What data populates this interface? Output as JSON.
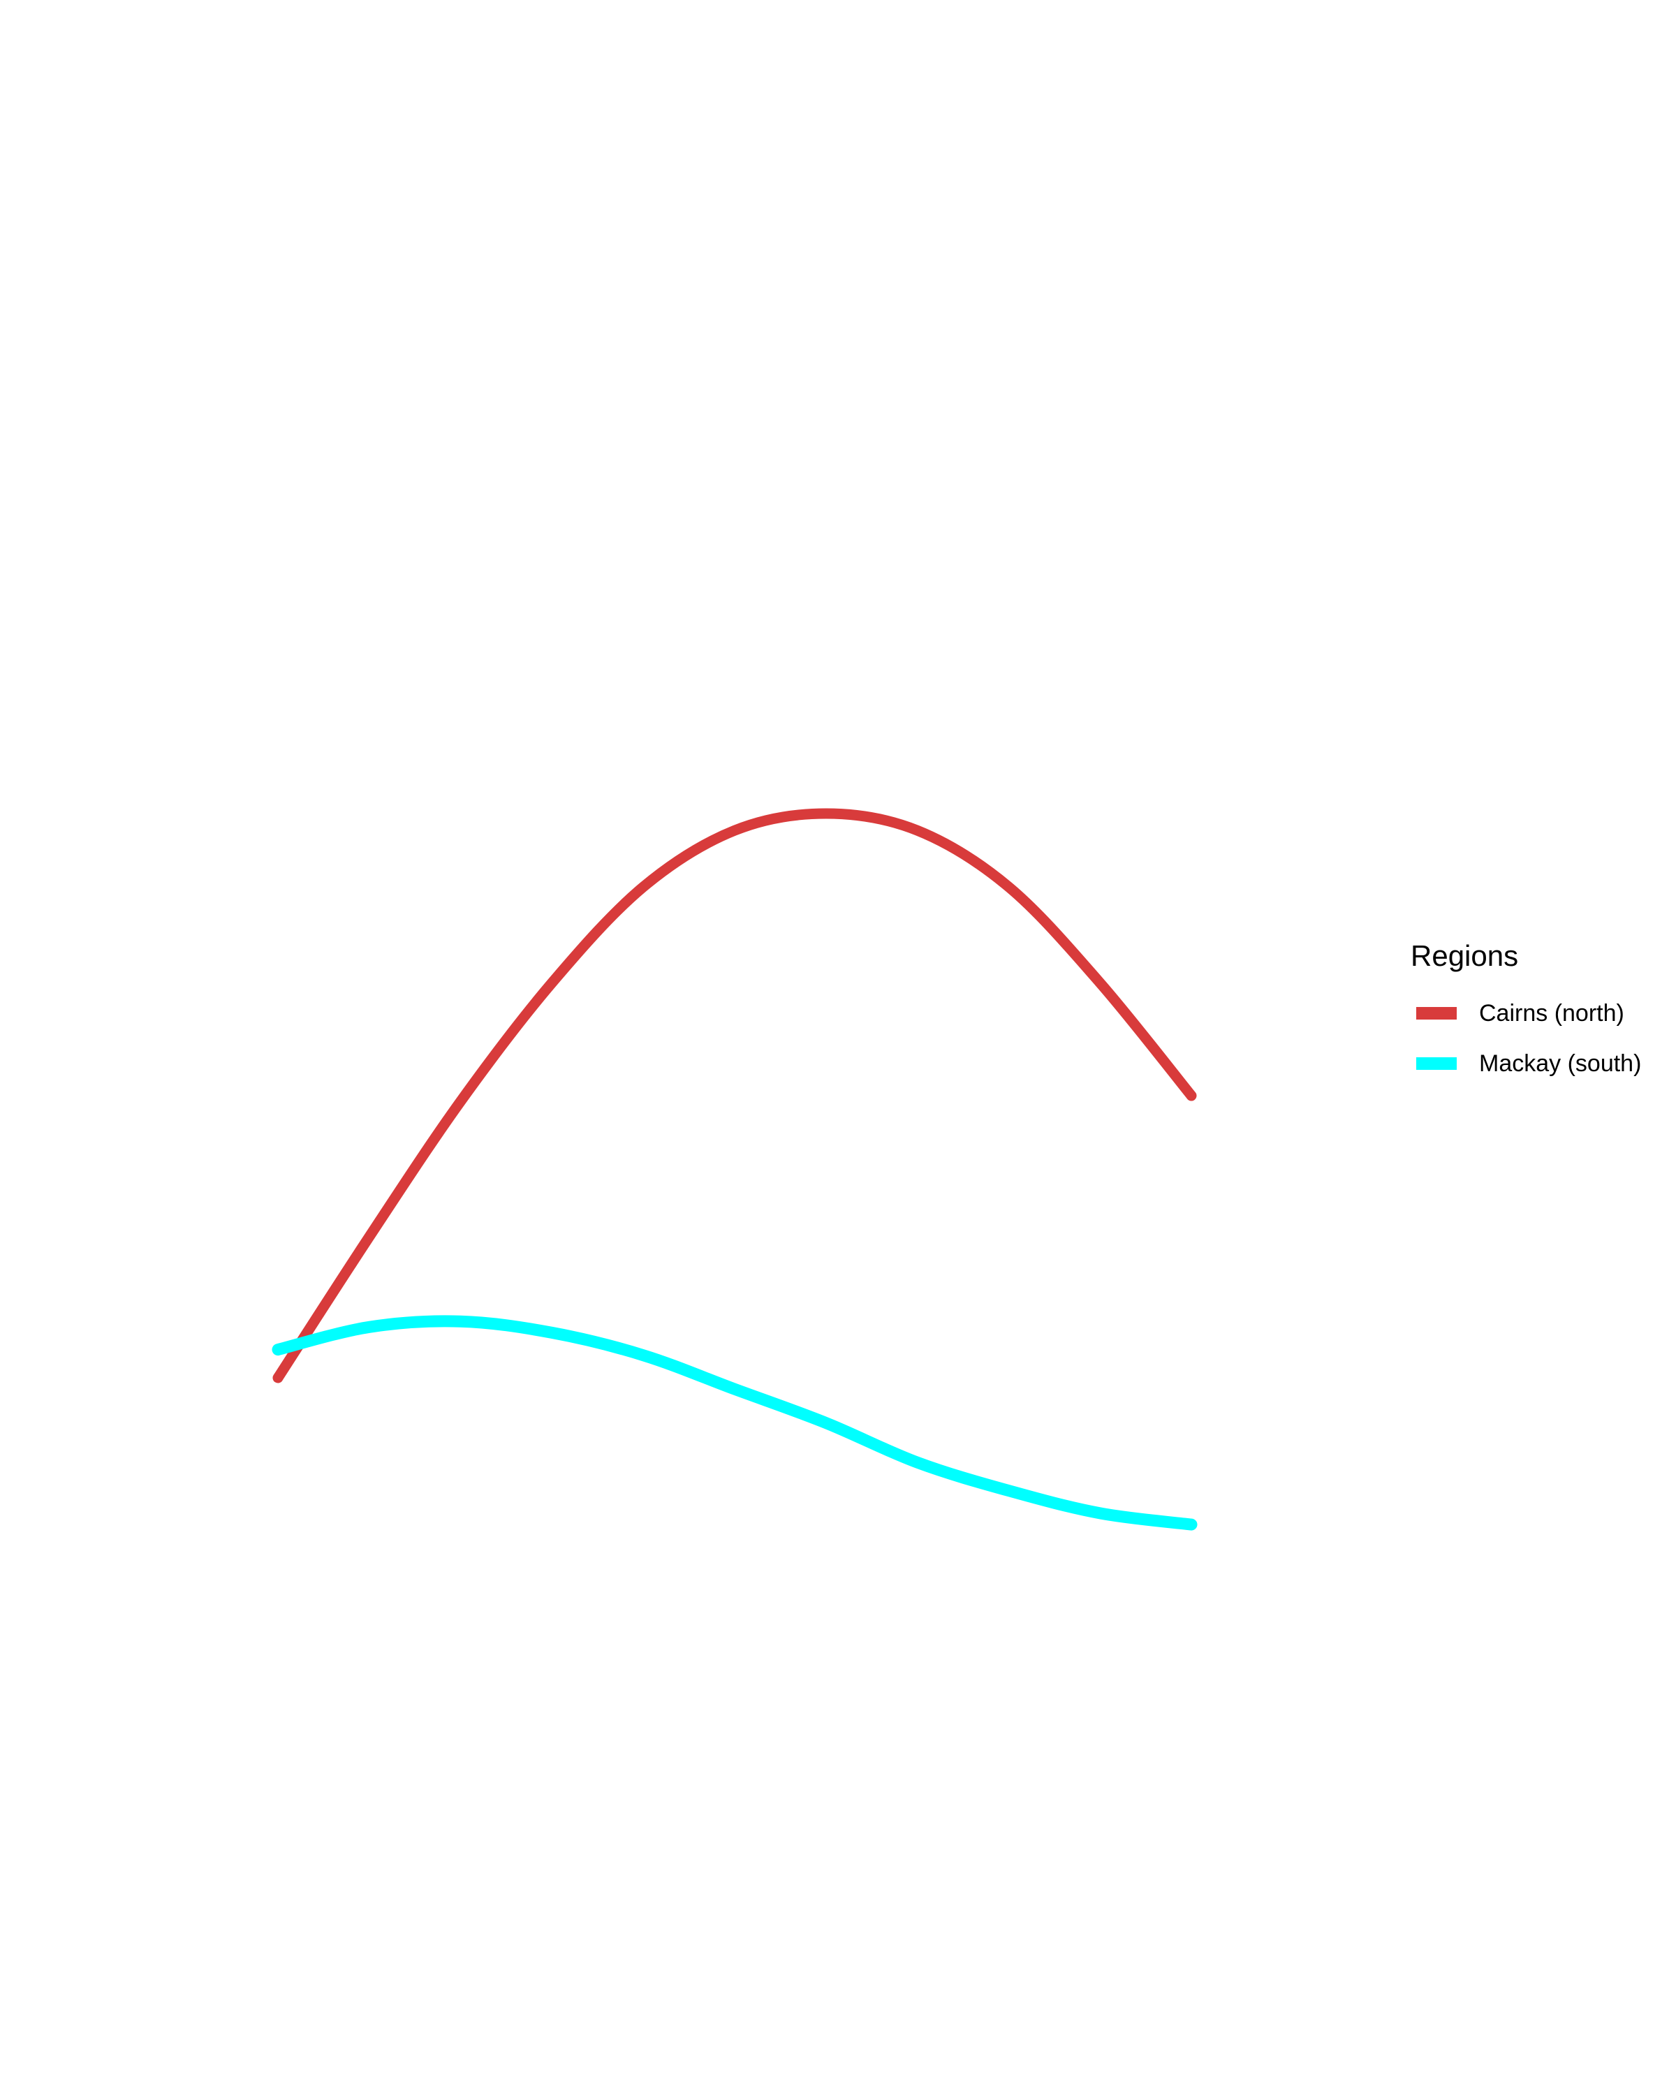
{
  "chart_data": {
    "type": "line",
    "title": "",
    "xlabel": "",
    "ylabel": "",
    "axes_visible": false,
    "grid": false,
    "legend_position": "right",
    "legend_title": "Regions",
    "series": [
      {
        "name": "Cairns (north)",
        "color": "#d83b3b",
        "points": [
          [
            0.0,
            0.0
          ],
          [
            0.1,
            0.25
          ],
          [
            0.2,
            0.49
          ],
          [
            0.3,
            0.7
          ],
          [
            0.4,
            0.87
          ],
          [
            0.5,
            0.97
          ],
          [
            0.6,
            1.0
          ],
          [
            0.7,
            0.97
          ],
          [
            0.8,
            0.87
          ],
          [
            0.9,
            0.7
          ],
          [
            1.0,
            0.5
          ]
        ]
      },
      {
        "name": "Mackay (south)",
        "color": "#00ffff",
        "points": [
          [
            0.0,
            0.05
          ],
          [
            0.1,
            0.09
          ],
          [
            0.2,
            0.1
          ],
          [
            0.3,
            0.08
          ],
          [
            0.4,
            0.04
          ],
          [
            0.5,
            -0.02
          ],
          [
            0.6,
            -0.08
          ],
          [
            0.7,
            -0.15
          ],
          [
            0.8,
            -0.2
          ],
          [
            0.9,
            -0.24
          ],
          [
            1.0,
            -0.26
          ]
        ]
      }
    ]
  }
}
